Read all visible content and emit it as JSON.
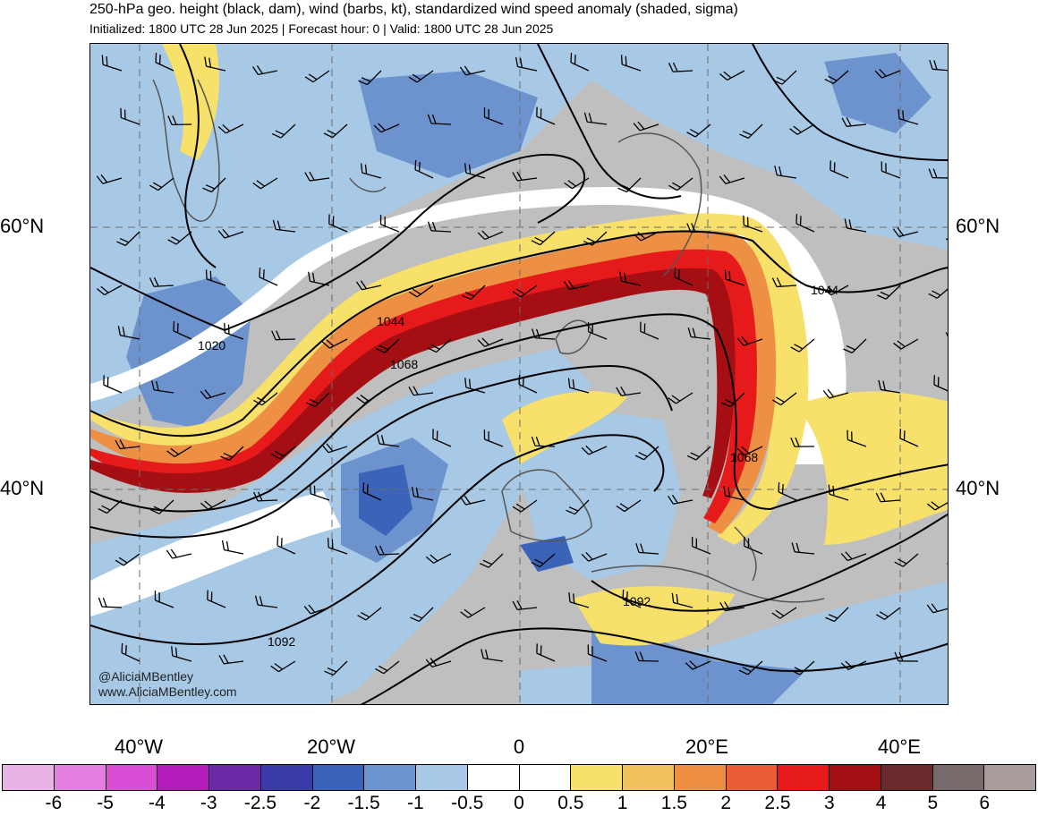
{
  "title": "250-hPa geo. height (black, dam), wind (barbs, kt), standardized wind speed anomaly (shaded, sigma)",
  "subtitle": "Initialized: 1800 UTC 28 Jun 2025 | Forecast hour: 0 | Valid: 1800 UTC 28 Jun 2025",
  "credits": {
    "handle": "@AliciaMBentley",
    "website": "www.AliciaMBentley.com"
  },
  "lat_labels": [
    "60°N",
    "40°N"
  ],
  "lon_labels": [
    "40°W",
    "20°W",
    "0",
    "20°E",
    "40°E"
  ],
  "contour_labels": [
    "1020",
    "1044",
    "1068",
    "1044",
    "1068",
    "1092",
    "1092"
  ],
  "colorbar": {
    "labels": [
      "-6",
      "-5",
      "-4",
      "-3",
      "-2.5",
      "-2",
      "-1.5",
      "-1",
      "-0.5",
      "0",
      "0.5",
      "1",
      "1.5",
      "2",
      "2.5",
      "3",
      "4",
      "5",
      "6"
    ],
    "colors": [
      "#e9b3e6",
      "#e37fe0",
      "#d84fd6",
      "#b31bbd",
      "#6a2aa8",
      "#3a3aa8",
      "#3b64b8",
      "#6c93cd",
      "#a8c9e6",
      "#ffffff",
      "#ffffff",
      "#f7e16b",
      "#f2c25e",
      "#ee9043",
      "#ec5c36",
      "#e61a1a",
      "#a50f14",
      "#6b2a2c",
      "#786a6a",
      "#a99c9b"
    ]
  },
  "colors": {
    "land": "#bfbfbf",
    "ocean_anomaly_neg": "#a8c9e6",
    "jet_core": "#a50f14"
  }
}
